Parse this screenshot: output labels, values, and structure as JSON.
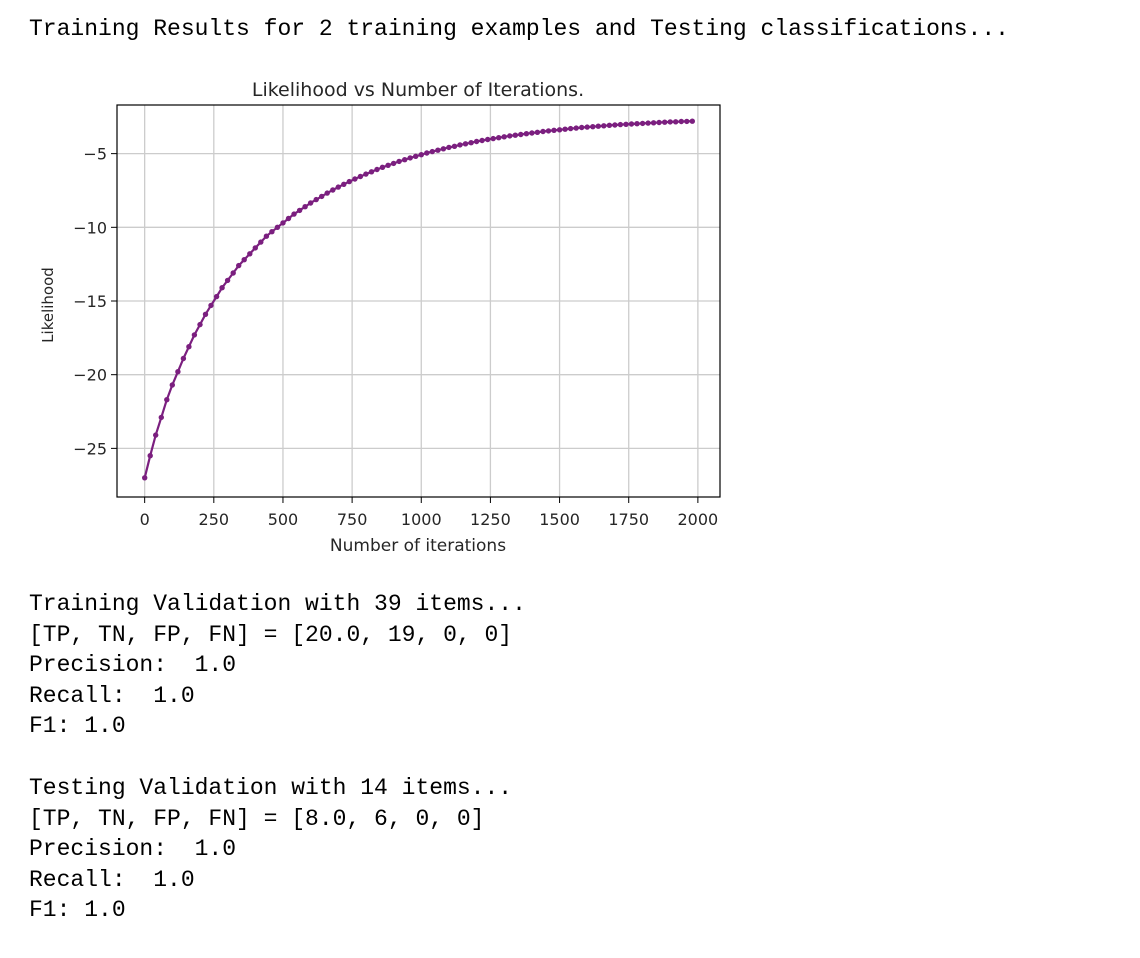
{
  "output": {
    "header": "Training Results for 2 training examples and Testing classifications...",
    "training": {
      "title": "Training Validation with 39 items...",
      "counts": "[TP, TN, FP, FN] = [20.0, 19, 0, 0]",
      "precision": "Precision:  1.0",
      "recall": "Recall:  1.0",
      "f1": "F1: 1.0"
    },
    "testing": {
      "title": "Testing Validation with 14 items...",
      "counts": "[TP, TN, FP, FN] = [8.0, 6, 0, 0]",
      "precision": "Precision:  1.0",
      "recall": "Recall:  1.0",
      "f1": "F1: 1.0"
    }
  },
  "chart_data": {
    "type": "line",
    "title": "Likelihood vs Number of Iterations.",
    "xlabel": "Number of iterations",
    "ylabel": "Likelihood",
    "xlim": [
      -100,
      2080
    ],
    "ylim": [
      -28.3,
      -1.7
    ],
    "grid": true,
    "legend": "none",
    "marker": "dot",
    "color": "#7b1f7f",
    "x_ticks": [
      0,
      250,
      500,
      750,
      1000,
      1250,
      1500,
      1750,
      2000
    ],
    "x_tick_labels": [
      "0",
      "250",
      "500",
      "750",
      "1000",
      "1250",
      "1500",
      "1750",
      "2000"
    ],
    "y_ticks": [
      -5,
      -10,
      -15,
      -20,
      -25
    ],
    "y_tick_labels": [
      "−5",
      "−10",
      "−15",
      "−20",
      "−25"
    ],
    "series": [
      {
        "x": [
          0,
          20,
          40,
          60,
          80,
          100,
          120,
          140,
          160,
          180,
          200,
          220,
          240,
          260,
          280,
          300,
          320,
          340,
          360,
          380,
          400,
          420,
          440,
          460,
          480,
          500,
          520,
          540,
          560,
          580,
          600,
          620,
          640,
          660,
          680,
          700,
          720,
          740,
          760,
          780,
          800,
          820,
          840,
          860,
          880,
          900,
          920,
          940,
          960,
          980,
          1000,
          1020,
          1040,
          1060,
          1080,
          1100,
          1120,
          1140,
          1160,
          1180,
          1200,
          1220,
          1240,
          1260,
          1280,
          1300,
          1320,
          1340,
          1360,
          1380,
          1400,
          1420,
          1440,
          1460,
          1480,
          1500,
          1520,
          1540,
          1560,
          1580,
          1600,
          1620,
          1640,
          1660,
          1680,
          1700,
          1720,
          1740,
          1760,
          1780,
          1800,
          1820,
          1840,
          1860,
          1880,
          1900,
          1920,
          1940,
          1960,
          1980
        ],
        "y": [
          -27.0,
          -25.5,
          -24.1,
          -22.9,
          -21.7,
          -20.7,
          -19.8,
          -18.9,
          -18.1,
          -17.3,
          -16.6,
          -15.9,
          -15.3,
          -14.7,
          -14.1,
          -13.6,
          -13.1,
          -12.6,
          -12.2,
          -11.8,
          -11.4,
          -11.0,
          -10.6,
          -10.3,
          -10.0,
          -9.7,
          -9.4,
          -9.1,
          -8.85,
          -8.6,
          -8.35,
          -8.12,
          -7.9,
          -7.68,
          -7.47,
          -7.27,
          -7.08,
          -6.9,
          -6.72,
          -6.55,
          -6.39,
          -6.23,
          -6.08,
          -5.93,
          -5.79,
          -5.66,
          -5.53,
          -5.41,
          -5.29,
          -5.18,
          -5.07,
          -4.96,
          -4.86,
          -4.77,
          -4.67,
          -4.58,
          -4.5,
          -4.41,
          -4.33,
          -4.26,
          -4.18,
          -4.11,
          -4.04,
          -3.98,
          -3.92,
          -3.86,
          -3.8,
          -3.75,
          -3.7,
          -3.65,
          -3.6,
          -3.55,
          -3.5,
          -3.46,
          -3.42,
          -3.38,
          -3.34,
          -3.3,
          -3.27,
          -3.23,
          -3.2,
          -3.17,
          -3.14,
          -3.11,
          -3.08,
          -3.06,
          -3.03,
          -3.01,
          -2.99,
          -2.97,
          -2.95,
          -2.93,
          -2.91,
          -2.89,
          -2.87,
          -2.85,
          -2.84,
          -2.82,
          -2.81,
          -2.8
        ]
      }
    ]
  }
}
